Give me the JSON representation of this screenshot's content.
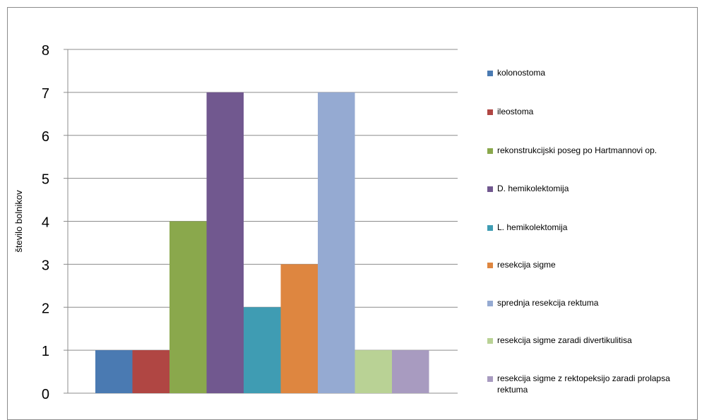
{
  "chart_data": {
    "type": "bar",
    "title": "",
    "xlabel": "",
    "ylabel": "število bolnikov",
    "ylim": [
      0,
      8
    ],
    "yticks": [
      "0",
      "1",
      "2",
      "3",
      "4",
      "5",
      "6",
      "7",
      "8"
    ],
    "grid": true,
    "legend_position": "right",
    "series": [
      {
        "name": "kolonostoma",
        "value": 1,
        "color": "#4a7ab2"
      },
      {
        "name": "ileostoma",
        "value": 1,
        "color": "#b04643"
      },
      {
        "name": "rekonstrukcijski poseg po Hartmannovi op.",
        "value": 4,
        "color": "#8aa84c"
      },
      {
        "name": "D. hemikolektomija",
        "value": 7,
        "color": "#71588f"
      },
      {
        "name": "L. hemikolektomija",
        "value": 2,
        "color": "#3f9cb3"
      },
      {
        "name": "resekcija sigme",
        "value": 3,
        "color": "#de8640"
      },
      {
        "name": "sprednja resekcija rektuma",
        "value": 7,
        "color": "#95aad2"
      },
      {
        "name": "resekcija sigme zaradi divertikulitisa",
        "value": 1,
        "color": "#b9d295"
      },
      {
        "name": "resekcija sigme z rektopeksijo zaradi prolapsa rektuma",
        "value": 1,
        "color": "#a89bc0"
      }
    ]
  }
}
